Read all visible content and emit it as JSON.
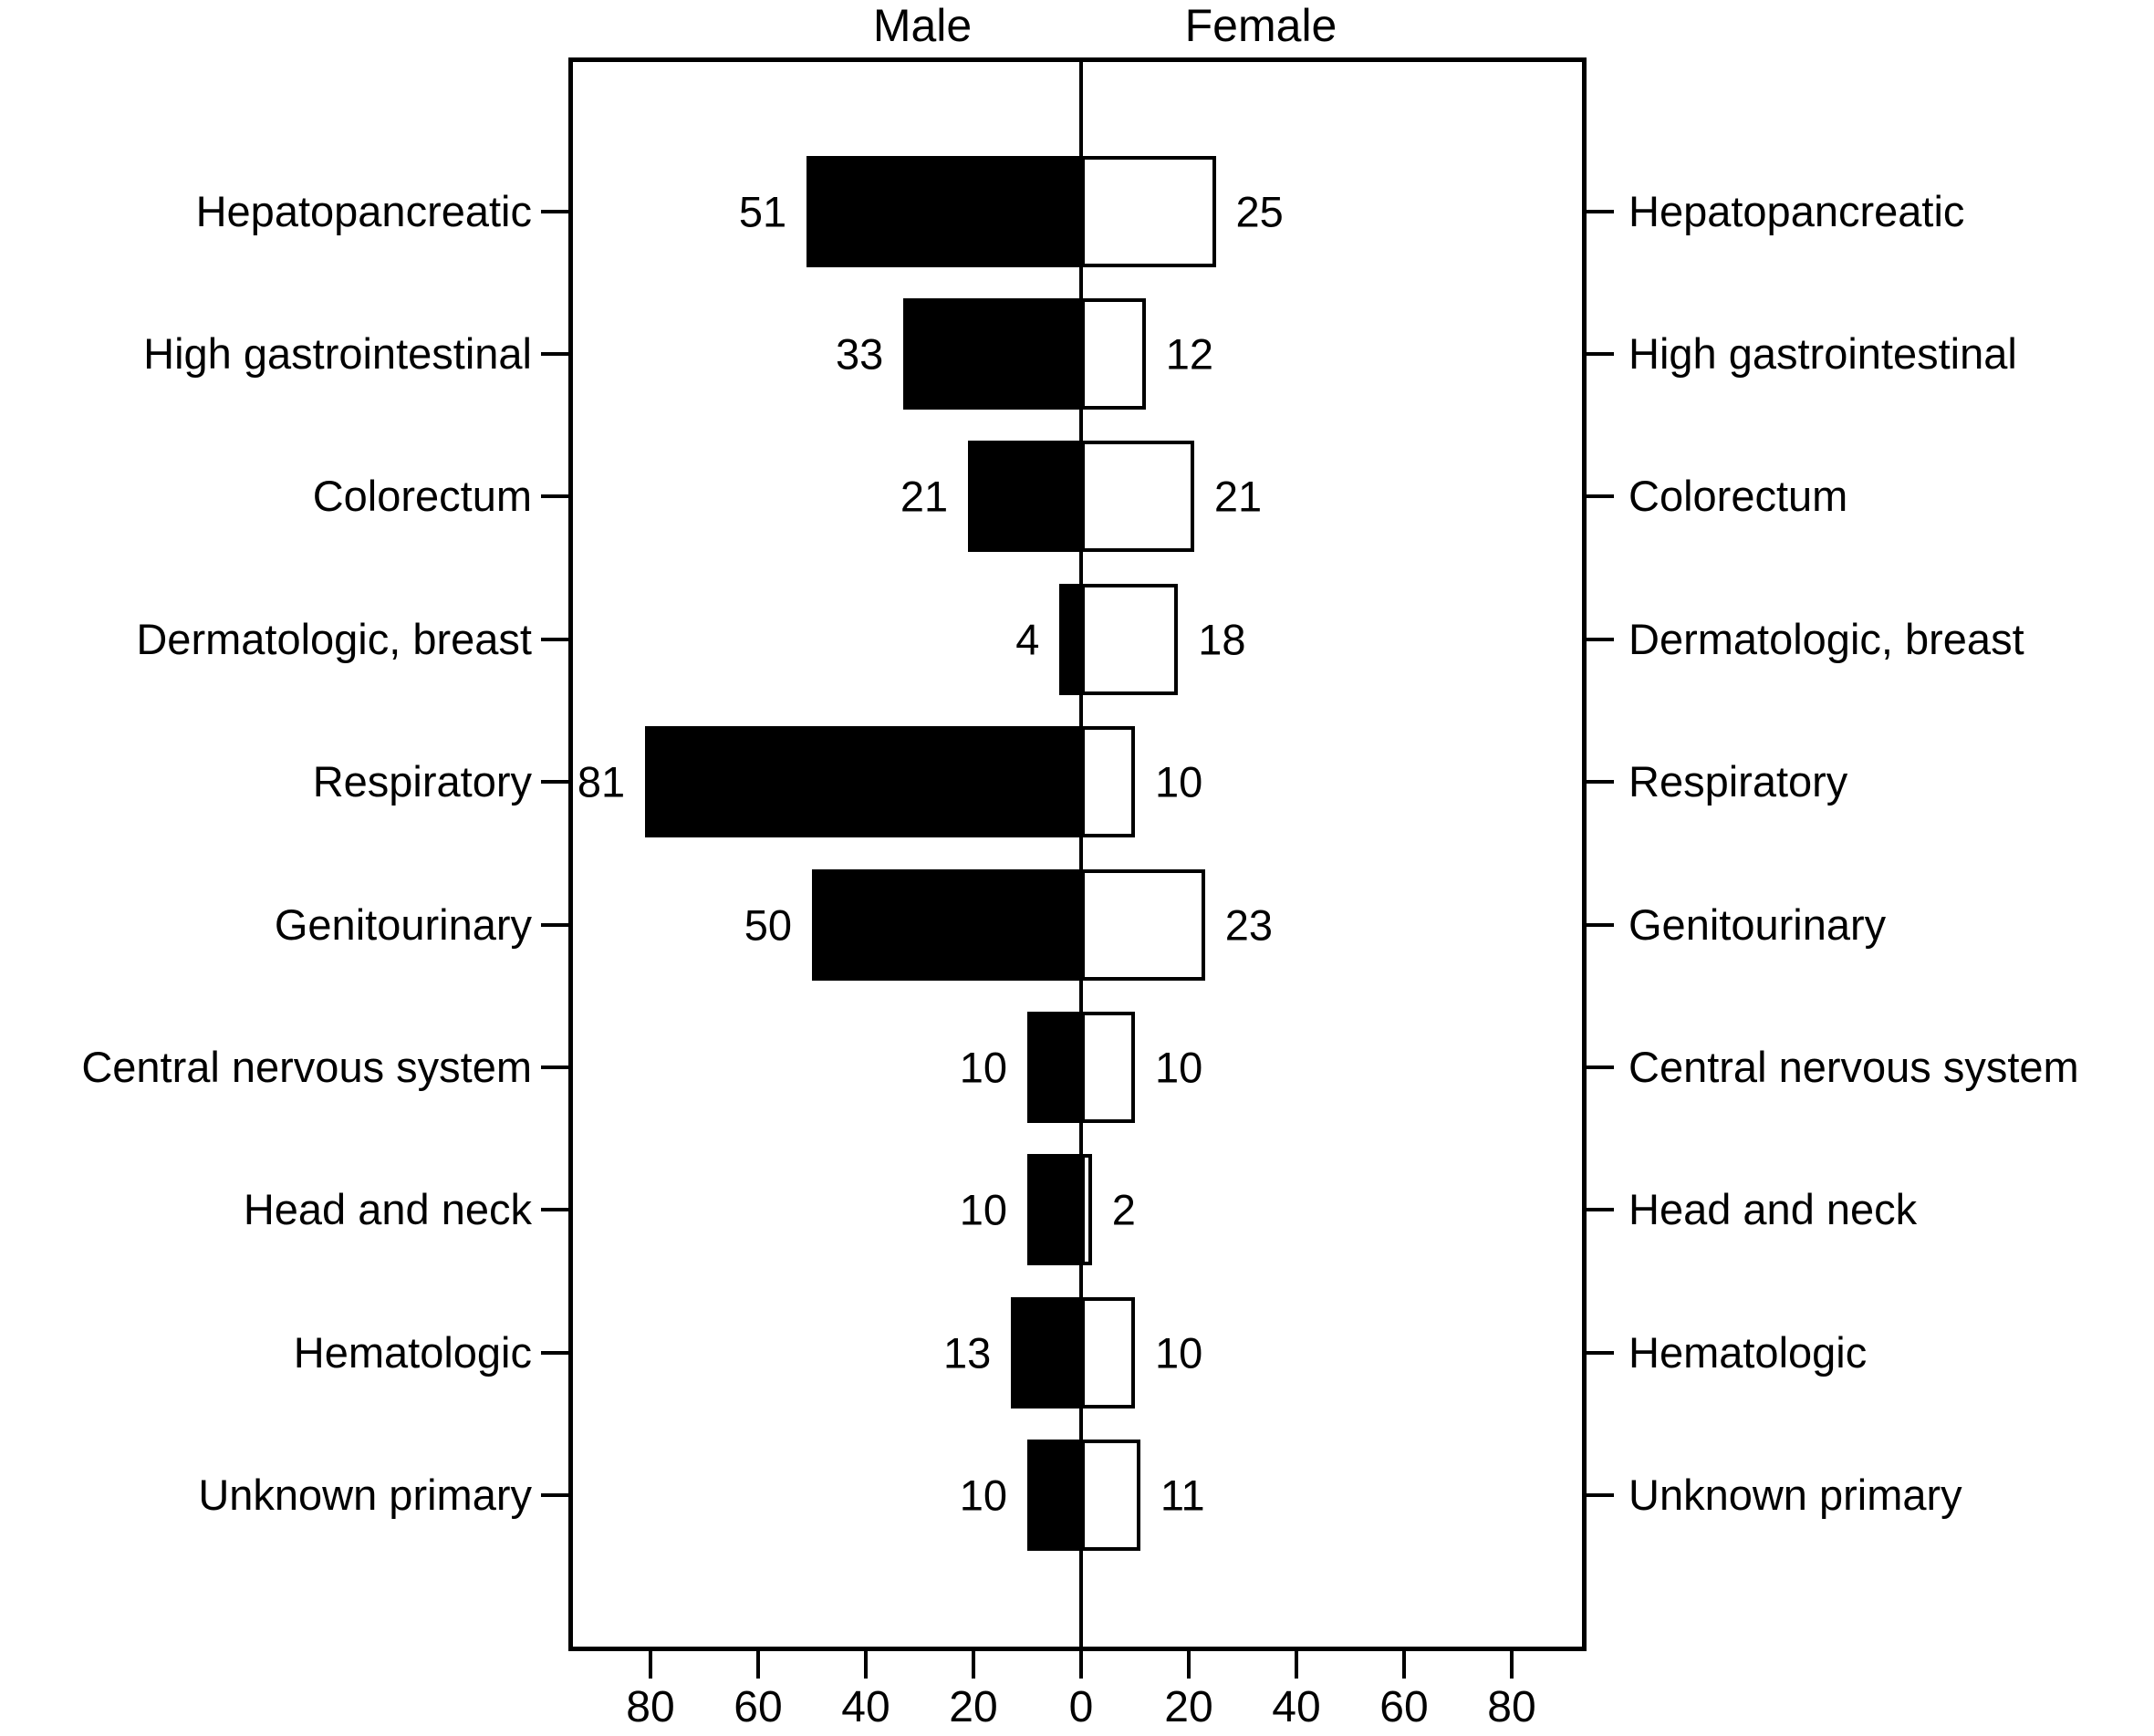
{
  "titles": {
    "male": "Male",
    "female": "Female"
  },
  "colors": {
    "background": "#ffffff",
    "text": "#000000",
    "axis": "#000000",
    "male_bar_fill": "#000000",
    "female_bar_fill": "#ffffff",
    "female_bar_border": "#000000"
  },
  "chart_data": {
    "type": "bar",
    "subtype": "diverging-horizontal-pyramid",
    "title": "",
    "xlabel": "",
    "ylabel": "",
    "grid": false,
    "legend_position": "top",
    "categories": [
      "Hepatopancreatic",
      "High gastrointestinal",
      "Colorectum",
      "Dermatologic, breast",
      "Respiratory",
      "Genitourinary",
      "Central nervous system",
      "Head and neck",
      "Hematologic",
      "Unknown primary"
    ],
    "series": [
      {
        "name": "Male",
        "side": "left",
        "values": [
          51,
          33,
          21,
          4,
          81,
          50,
          10,
          10,
          13,
          10
        ]
      },
      {
        "name": "Female",
        "side": "right",
        "values": [
          25,
          12,
          21,
          18,
          10,
          23,
          10,
          2,
          10,
          11
        ]
      }
    ],
    "x_axis": {
      "tick_labels": [
        "80",
        "60",
        "40",
        "20",
        "0",
        "20",
        "40",
        "60",
        "80"
      ],
      "tick_values": [
        -80,
        -60,
        -40,
        -20,
        0,
        20,
        40,
        60,
        80
      ],
      "range_abs_max": 80
    }
  }
}
